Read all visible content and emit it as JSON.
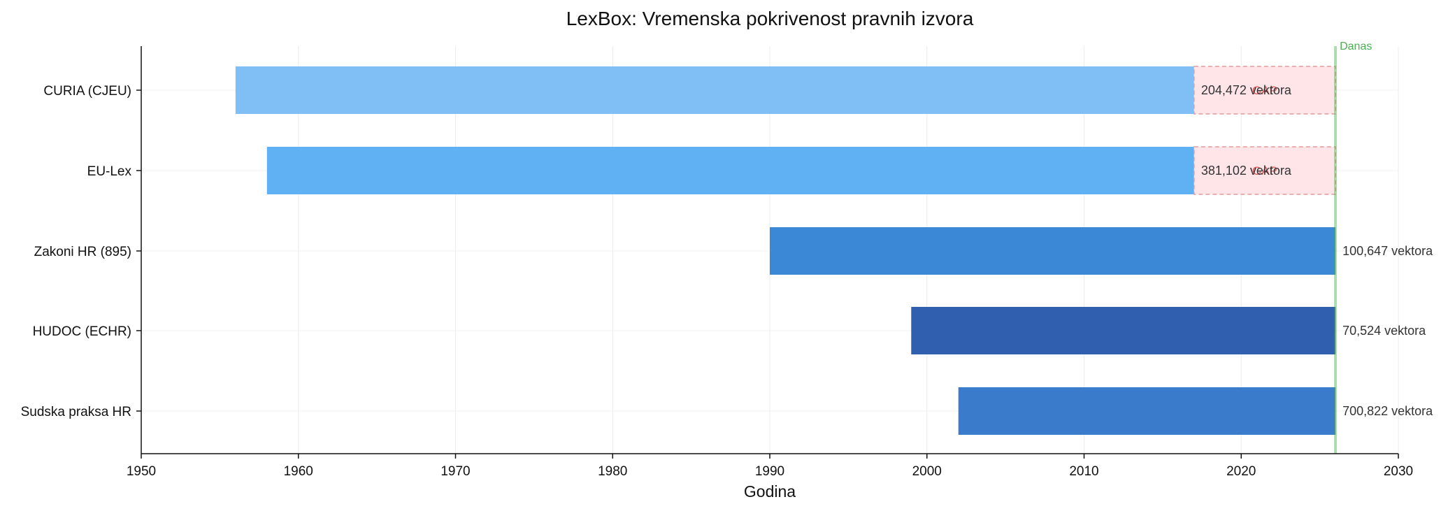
{
  "chart_data": {
    "type": "bar",
    "orientation": "horizontal-range",
    "title": "LexBox: Vremenska pokrivenost pravnih izvora",
    "xlabel": "Godina",
    "ylabel": "",
    "xlim": [
      1950,
      2030
    ],
    "xticks": [
      1950,
      1960,
      1970,
      1980,
      1990,
      2000,
      2010,
      2020,
      2030
    ],
    "grid": true,
    "today": {
      "label": "Danas",
      "year": 2026,
      "color": "#4caf50"
    },
    "gap_color": "#ffe4e8",
    "gap_border": "#e59a9a",
    "bars": [
      {
        "name": "CURIA (CJEU)",
        "start": 1956,
        "end": 2026,
        "gap_start": 2017,
        "vectors": "204,472 vektora",
        "gap_label": "GAP",
        "color": "#7fbff5"
      },
      {
        "name": "EU-Lex",
        "start": 1958,
        "end": 2026,
        "gap_start": 2017,
        "vectors": "381,102 vektora",
        "gap_label": "GAP",
        "color": "#5fb1f4"
      },
      {
        "name": "Zakoni HR (895)",
        "start": 1990,
        "end": 2026,
        "gap_start": null,
        "vectors": "100,647 vektora",
        "gap_label": "",
        "color": "#3a88d6"
      },
      {
        "name": "HUDOC (ECHR)",
        "start": 1999,
        "end": 2026,
        "gap_start": null,
        "vectors": "70,524 vektora",
        "gap_label": "",
        "color": "#2f5fae"
      },
      {
        "name": "Sudska praksa HR",
        "start": 2002,
        "end": 2026,
        "gap_start": null,
        "vectors": "700,822 vektora",
        "gap_label": "",
        "color": "#3a7ccb"
      }
    ]
  }
}
